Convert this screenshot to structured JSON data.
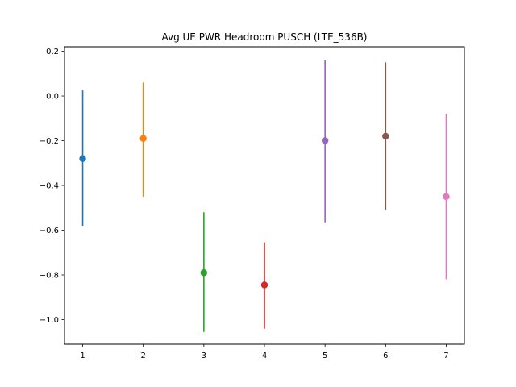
{
  "chart_data": {
    "type": "scatter",
    "title": "Avg UE PWR Headroom PUSCH (LTE_536B)",
    "xlabel": "",
    "ylabel": "",
    "xlim": [
      0.7,
      7.3
    ],
    "ylim": [
      -1.11,
      0.22
    ],
    "xticks": [
      1,
      2,
      3,
      4,
      5,
      6,
      7
    ],
    "yticks": [
      0.2,
      0.0,
      -0.2,
      -0.4,
      -0.6,
      -0.8,
      -1.0
    ],
    "ytick_labels": [
      "0.2",
      "0.0",
      "−0.2",
      "−0.4",
      "−0.6",
      "−0.8",
      "−1.0"
    ],
    "grid": false,
    "points": [
      {
        "x": 1,
        "y": -0.28,
        "low": -0.58,
        "high": 0.025,
        "color": "#1f77b4"
      },
      {
        "x": 2,
        "y": -0.19,
        "low": -0.45,
        "high": 0.06,
        "color": "#ff7f0e"
      },
      {
        "x": 3,
        "y": -0.79,
        "low": -1.055,
        "high": -0.52,
        "color": "#2ca02c"
      },
      {
        "x": 4,
        "y": -0.845,
        "low": -1.04,
        "high": -0.655,
        "color": "#d62728"
      },
      {
        "x": 5,
        "y": -0.2,
        "low": -0.565,
        "high": 0.16,
        "color": "#9467bd"
      },
      {
        "x": 6,
        "y": -0.18,
        "low": -0.51,
        "high": 0.15,
        "color": "#8c564b"
      },
      {
        "x": 7,
        "y": -0.45,
        "low": -0.82,
        "high": -0.08,
        "color": "#e377c2"
      }
    ]
  }
}
